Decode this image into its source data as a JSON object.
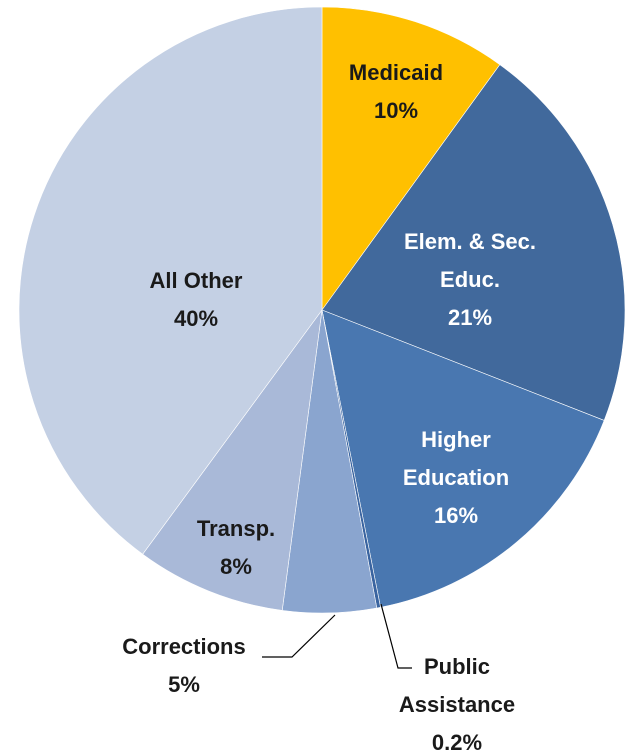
{
  "chart_data": {
    "type": "pie",
    "categories": [
      "Medicaid",
      "Elem. & Sec. Educ.",
      "Higher Education",
      "Public Assistance",
      "Corrections",
      "Transp.",
      "All Other"
    ],
    "values": [
      10,
      21,
      16,
      0.2,
      5,
      8,
      40
    ],
    "value_labels": [
      "10%",
      "21%",
      "16%",
      "0.2%",
      "5%",
      "8%",
      "40%"
    ],
    "colors": [
      "#ffc000",
      "#41699c",
      "#4977b0",
      "#3a64a0",
      "#8aa5cf",
      "#a9b9d8",
      "#c4d0e4"
    ]
  }
}
